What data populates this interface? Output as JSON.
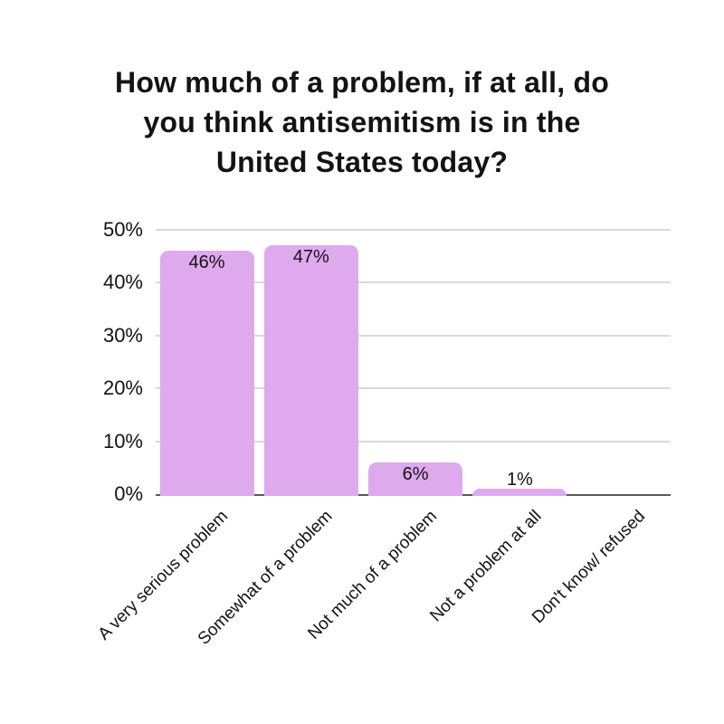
{
  "page": {
    "background_color": "#ffffff"
  },
  "chart": {
    "title_lines": [
      "How much of a problem, if at all, do",
      "you think antisemitism is in the",
      "United States today?"
    ],
    "colors": {
      "bar": "#dfa9ee",
      "grid": "#d9d9d9",
      "axis": "#5a5a5a",
      "text": "#131313"
    }
  },
  "chart_data": {
    "type": "bar",
    "title": "How much of a problem, if at all, do you think antisemitism is in the United States today?",
    "categories": [
      "A very serious problem",
      "Somewhat of a problem",
      "Not much of a problem",
      "Not a problem at all",
      "Don't know/ refused"
    ],
    "values": [
      46,
      47,
      6,
      1,
      0
    ],
    "value_labels": [
      "46%",
      "47%",
      "6%",
      "1%",
      ""
    ],
    "xlabel": "",
    "ylabel": "",
    "ylim": [
      0,
      50
    ],
    "ytick_labels": [
      "0%",
      "10%",
      "20%",
      "30%",
      "40%",
      "50%"
    ],
    "grid": true,
    "legend": false,
    "bar_color": "#dfa9ee"
  }
}
